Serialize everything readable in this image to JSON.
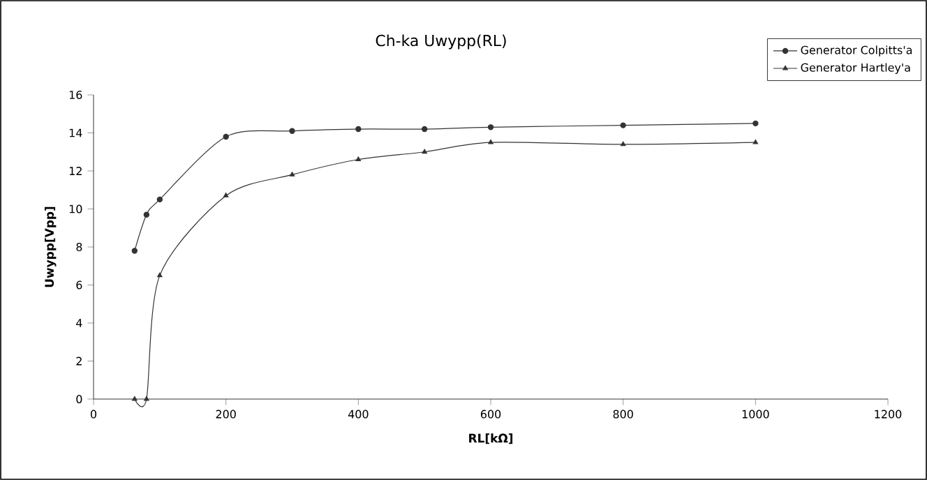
{
  "chart_data": {
    "type": "line",
    "title": "Ch-ka Uwypp(RL)",
    "xlabel": "RL[kΩ]",
    "ylabel": "Uwypp[Vpp]",
    "x": [
      62,
      80,
      100,
      200,
      300,
      400,
      500,
      600,
      800,
      1000
    ],
    "series": [
      {
        "name": "Generator Colpitts'a",
        "color": "#333333",
        "marker": "circle",
        "values": [
          7.8,
          9.7,
          10.5,
          13.8,
          14.1,
          14.2,
          14.2,
          14.3,
          14.4,
          14.5
        ]
      },
      {
        "name": "Generator Hartley'a",
        "color": "#333333",
        "marker": "triangle",
        "values": [
          0,
          0,
          6.5,
          10.7,
          11.8,
          12.6,
          13.0,
          13.5,
          13.4,
          13.5
        ]
      }
    ],
    "xlim": [
      0,
      1200
    ],
    "xticks": [
      0,
      200,
      400,
      600,
      800,
      1000,
      1200
    ],
    "ylim": [
      0,
      16
    ],
    "yticks": [
      0,
      2,
      4,
      6,
      8,
      10,
      12,
      14,
      16
    ],
    "grid": false,
    "legend": "top right"
  }
}
